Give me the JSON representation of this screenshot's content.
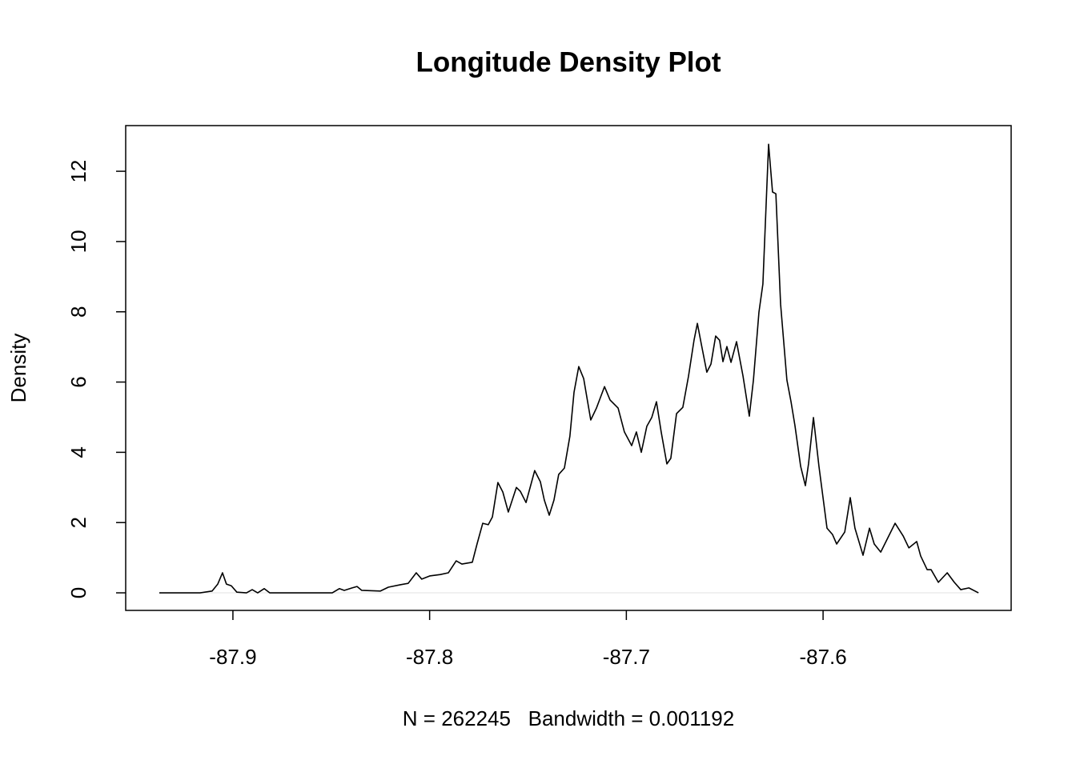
{
  "chart_data": {
    "type": "line",
    "title": "Longitude Density Plot",
    "x_label": "N = 262245   Bandwidth = 0.001192",
    "y_label": "Density",
    "color": "#000000",
    "x": [
      -87.9374,
      -87.9167,
      -87.9106,
      -87.9077,
      -87.9053,
      -87.9033,
      -87.9008,
      -87.898,
      -87.8931,
      -87.8902,
      -87.8874,
      -87.8841,
      -87.8813,
      -87.878,
      -87.8495,
      -87.8459,
      -87.8434,
      -87.8394,
      -87.8369,
      -87.8345,
      -87.8251,
      -87.821,
      -87.8149,
      -87.8109,
      -87.8068,
      -87.804,
      -87.8,
      -87.7946,
      -87.7905,
      -87.7865,
      -87.7836,
      -87.7783,
      -87.7759,
      -87.773,
      -87.7702,
      -87.7681,
      -87.7653,
      -87.7628,
      -87.76,
      -87.7559,
      -87.7539,
      -87.751,
      -87.7466,
      -87.7437,
      -87.7417,
      -87.7392,
      -87.7368,
      -87.7344,
      -87.7315,
      -87.7287,
      -87.7266,
      -87.7242,
      -87.7217,
      -87.7181,
      -87.7152,
      -87.7111,
      -87.7083,
      -87.7042,
      -87.701,
      -87.6973,
      -87.6949,
      -87.6924,
      -87.6896,
      -87.6871,
      -87.6847,
      -87.6823,
      -87.6794,
      -87.6774,
      -87.6745,
      -87.6713,
      -87.6684,
      -87.6656,
      -87.6639,
      -87.6619,
      -87.6591,
      -87.657,
      -87.6546,
      -87.6526,
      -87.6509,
      -87.6489,
      -87.6468,
      -87.644,
      -87.6407,
      -87.6375,
      -87.6354,
      -87.6326,
      -87.6306,
      -87.6277,
      -87.6257,
      -87.624,
      -87.6216,
      -87.6184,
      -87.6163,
      -87.6143,
      -87.6114,
      -87.609,
      -87.6074,
      -87.6049,
      -87.6021,
      -87.598,
      -87.5952,
      -87.5931,
      -87.589,
      -87.5862,
      -87.5838,
      -87.5797,
      -87.5764,
      -87.574,
      -87.5707,
      -87.5666,
      -87.5634,
      -87.5593,
      -87.5564,
      -87.5524,
      -87.5504,
      -87.5471,
      -87.5451,
      -87.5414,
      -87.5369,
      -87.5333,
      -87.53,
      -87.5259,
      -87.521
    ],
    "values": [
      0,
      0,
      0.05,
      0.25,
      0.57,
      0.25,
      0.2,
      0.02,
      0,
      0.09,
      0,
      0.12,
      0,
      0,
      0,
      0.12,
      0.07,
      0.14,
      0.18,
      0.07,
      0.05,
      0.16,
      0.23,
      0.27,
      0.57,
      0.39,
      0.48,
      0.52,
      0.57,
      0.91,
      0.82,
      0.87,
      1.39,
      1.98,
      1.94,
      2.16,
      3.14,
      2.87,
      2.3,
      3.0,
      2.89,
      2.57,
      3.48,
      3.16,
      2.64,
      2.21,
      2.64,
      3.37,
      3.55,
      4.46,
      5.71,
      6.44,
      6.1,
      4.92,
      5.26,
      5.87,
      5.49,
      5.26,
      4.58,
      4.19,
      4.58,
      4.0,
      4.74,
      4.99,
      5.44,
      4.58,
      3.67,
      3.83,
      5.1,
      5.28,
      6.17,
      7.19,
      7.67,
      7.08,
      6.28,
      6.51,
      7.31,
      7.19,
      6.58,
      7.01,
      6.56,
      7.15,
      6.17,
      5.03,
      6.06,
      7.99,
      8.79,
      12.77,
      11.41,
      11.36,
      8.22,
      6.06,
      5.44,
      4.76,
      3.6,
      3.05,
      3.67,
      4.99,
      3.6,
      1.84,
      1.66,
      1.39,
      1.73,
      2.71,
      1.84,
      1.07,
      1.84,
      1.39,
      1.16,
      1.62,
      1.98,
      1.62,
      1.28,
      1.46,
      1.05,
      0.66,
      0.66,
      0.3,
      0.57,
      0.3,
      0.09,
      0.14,
      0
    ],
    "xlim": [
      -87.9545,
      -87.5044
    ],
    "xticks": [
      -87.9,
      -87.8,
      -87.7,
      -87.6
    ],
    "ylim": [
      -0.5,
      13.3
    ],
    "yticks": [
      0,
      2,
      4,
      6,
      8,
      10,
      12
    ]
  }
}
